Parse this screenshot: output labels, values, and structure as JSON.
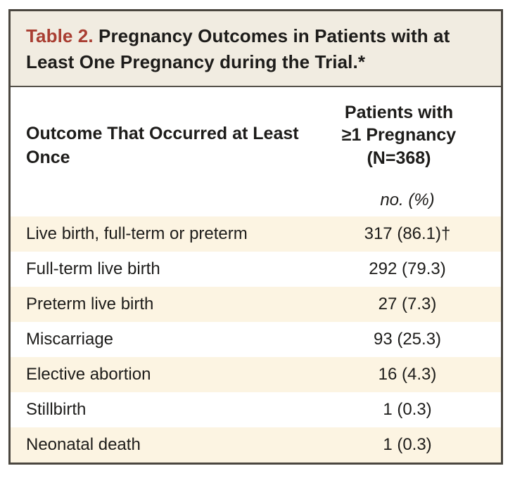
{
  "table": {
    "title_label": "Table 2.",
    "title_text": " Pregnancy Outcomes in Patients with at Least One Pregnancy during the Trial.*",
    "header": {
      "outcome_label": "Outcome That Occurred at Least Once",
      "patients_lines": [
        "Patients with",
        "≥1 Pregnancy",
        "(N=368)"
      ],
      "unit_label": "no. (%)"
    },
    "rows": [
      {
        "label": "Live birth, full-term or preterm",
        "value": "317 (86.1)†"
      },
      {
        "label": "Full-term live birth",
        "value": "292 (79.3)"
      },
      {
        "label": "Preterm live birth",
        "value": "27 (7.3)"
      },
      {
        "label": "Miscarriage",
        "value": "93 (25.3)"
      },
      {
        "label": "Elective abortion",
        "value": "16 (4.3)"
      },
      {
        "label": "Stillbirth",
        "value": "1 (0.3)"
      },
      {
        "label": "Neonatal death",
        "value": "1 (0.3)"
      }
    ],
    "colors": {
      "title_red": "#a93e32",
      "title_background": "#f1ece1",
      "row_stripe": "#fcf4e2",
      "border": "#4a463f",
      "text": "#1d1c1a"
    }
  }
}
